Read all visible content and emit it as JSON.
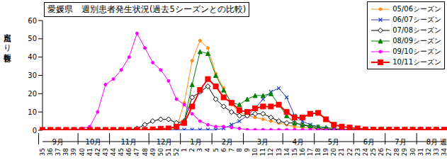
{
  "chart_data": {
    "type": "line",
    "title": "愛媛県　週別患者発生状況(過去5シーズンとの比較)",
    "y_label": "定点当たり報告数",
    "x_label": "週",
    "categories": [
      "35",
      "36",
      "37",
      "38",
      "39",
      "40",
      "41",
      "42",
      "43",
      "44",
      "45",
      "46",
      "47",
      "48",
      "49",
      "50",
      "51",
      "52",
      "1",
      "2",
      "3",
      "4",
      "5",
      "6",
      "7",
      "8",
      "9",
      "10",
      "11",
      "12",
      "13",
      "14",
      "15",
      "16",
      "17",
      "18",
      "19",
      "20",
      "21",
      "22",
      "23",
      "24",
      "25",
      "26",
      "27",
      "28",
      "29",
      "30",
      "31",
      "32",
      "33",
      "34"
    ],
    "month_labels": [
      {
        "label": "9月",
        "start": "35"
      },
      {
        "label": "10月",
        "start": "40"
      },
      {
        "label": "11月",
        "start": "44"
      },
      {
        "label": "12月",
        "start": "49"
      },
      {
        "label": "1月",
        "start": "1"
      },
      {
        "label": "2月",
        "start": "5"
      },
      {
        "label": "3月",
        "start": "9"
      },
      {
        "label": "4月",
        "start": "14"
      },
      {
        "label": "5月",
        "start": "18"
      },
      {
        "label": "6月",
        "start": "23"
      },
      {
        "label": "7月",
        "start": "27"
      },
      {
        "label": "8月",
        "start": "31"
      }
    ],
    "ylim": [
      0,
      60
    ],
    "yticks": [
      0,
      10,
      20,
      30,
      40,
      50,
      60
    ],
    "grid": false,
    "legend": "upper right",
    "series": [
      {
        "name": "05/06シーズン",
        "color": "#ff8c1a",
        "marker": "circle",
        "values": [
          0.2,
          0.2,
          0.2,
          0.2,
          0.2,
          0.2,
          0.2,
          0.2,
          0.2,
          0.2,
          0.2,
          0.2,
          0.2,
          0.2,
          0.2,
          0.2,
          0.5,
          1,
          15,
          38,
          49,
          45,
          31,
          23,
          14,
          10,
          8,
          7,
          6,
          5,
          4,
          3,
          2,
          1.5,
          1,
          1,
          0.8,
          0.5,
          0.3,
          0.3,
          0.3,
          0.3,
          0.3,
          0.3,
          0.3,
          0.3,
          0.3,
          0.3,
          0.3,
          0.3,
          0.3,
          0.3
        ]
      },
      {
        "name": "06/07シーズン",
        "color": "#1f3fbf",
        "marker": "x",
        "values": [
          0.3,
          0.3,
          0.3,
          0.3,
          0.3,
          0.3,
          0.3,
          0.3,
          0.3,
          0.3,
          0.3,
          0.3,
          0.3,
          0.3,
          0.3,
          0.3,
          0.3,
          0.3,
          0.3,
          0.3,
          0.3,
          0.3,
          0.3,
          1,
          3,
          5,
          8,
          12,
          17,
          21,
          23,
          18,
          8,
          5,
          3,
          2,
          1,
          0.4,
          0.4,
          0.4,
          0.4,
          0.4,
          0.4,
          0.4,
          0.4,
          0.4,
          0.4,
          0.4,
          0.4,
          0.4,
          0.4,
          0.4
        ]
      },
      {
        "name": "07/08シーズン",
        "color": "#000000",
        "marker": "diamond",
        "values": [
          0.3,
          0.3,
          0.3,
          0.3,
          0.3,
          0.3,
          0.3,
          0.3,
          0.3,
          0.3,
          0.3,
          0.3,
          1,
          3,
          5,
          6,
          6,
          4,
          5,
          18,
          21,
          24,
          17,
          13,
          10,
          8,
          8,
          9,
          9,
          7,
          5,
          4,
          4,
          3,
          2,
          1,
          0.4,
          0.4,
          0.4,
          0.4,
          0.4,
          0.4,
          0.4,
          0.4,
          0.4,
          0.4,
          0.4,
          0.4,
          0.4,
          0.4,
          0.4,
          0.4
        ]
      },
      {
        "name": "08/09シーズン",
        "color": "#008000",
        "marker": "triangle",
        "values": [
          0.2,
          0.2,
          0.2,
          0.2,
          0.2,
          0.2,
          0.2,
          0.2,
          0.2,
          0.2,
          0.2,
          0.2,
          0.2,
          0.2,
          0.2,
          0.5,
          1,
          2,
          5,
          25,
          43,
          42,
          30,
          22,
          15,
          14,
          17,
          19,
          19,
          20,
          14,
          8,
          4,
          3,
          2.5,
          2,
          1.5,
          1,
          0.5,
          0.5,
          0.5,
          0.5,
          0.5,
          0.5,
          0.5,
          0.5,
          0.5,
          0.5,
          0.5,
          0.5,
          0.5,
          0.5
        ]
      },
      {
        "name": "09/10シーズン",
        "color": "#ff00ff",
        "marker": "circle",
        "values": [
          0.3,
          0.3,
          0.3,
          0.3,
          0.3,
          1,
          2,
          10,
          25,
          28,
          33,
          40,
          53,
          45,
          37,
          33,
          27,
          17,
          14,
          9,
          5,
          3,
          2,
          2,
          1.5,
          1,
          0.3,
          0.3,
          0.3,
          0.3,
          0.3,
          0.3,
          0.3,
          0.3,
          0.3,
          0.3,
          0.3,
          0.3,
          0.3,
          0.3,
          0.3,
          0.3,
          0.3,
          0.3,
          0.3,
          0.3,
          0.3,
          0.3,
          0.3,
          0.3,
          0.3,
          0.3
        ]
      },
      {
        "name": "10/11シーズン",
        "color": "#ff0000",
        "marker": "square",
        "values": [
          0.2,
          0.2,
          0.2,
          0.2,
          0.2,
          0.2,
          0.2,
          0.2,
          0.2,
          0.2,
          0.2,
          0.2,
          0.2,
          0.2,
          0.5,
          0.8,
          1,
          2,
          4,
          13,
          22,
          28,
          24,
          18,
          15,
          11,
          10,
          12,
          13,
          13,
          14,
          10,
          7,
          7,
          9,
          9.5,
          6,
          3,
          2,
          1.5,
          1,
          0.5,
          0.3,
          0.3,
          0.3,
          0.3,
          0.3,
          0.3,
          0.3,
          0.3,
          0.3,
          0.3
        ]
      }
    ]
  }
}
